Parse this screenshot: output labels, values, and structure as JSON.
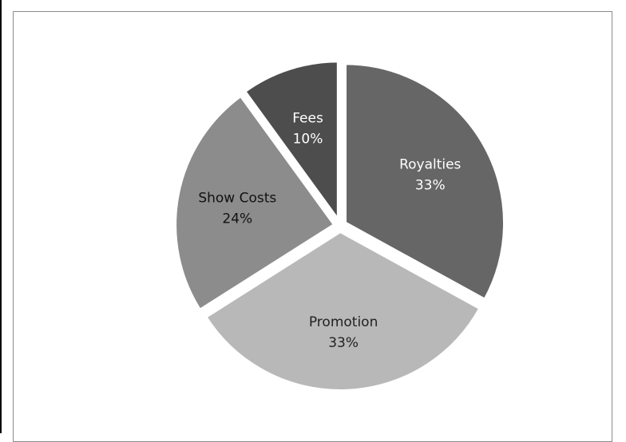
{
  "chart_data": {
    "type": "pie",
    "title": "",
    "start_angle_deg": 0,
    "direction": "clockwise",
    "slices": [
      {
        "label": "Royalties",
        "percent_label": "33%",
        "value": 33,
        "color": "#666666",
        "text_color": "#ffffff",
        "exploded": true
      },
      {
        "label": "Promotion",
        "percent_label": "33%",
        "value": 33,
        "color": "#b8b8b8",
        "text_color": "#222222",
        "exploded": true
      },
      {
        "label": "Show Costs",
        "percent_label": "24%",
        "value": 24,
        "color": "#8c8c8c",
        "text_color": "#111111",
        "exploded": true
      },
      {
        "label": "Fees",
        "percent_label": "10%",
        "value": 10,
        "color": "#4d4d4d",
        "text_color": "#ffffff",
        "exploded": true
      }
    ],
    "legend": "none",
    "data_labels": "inside"
  }
}
